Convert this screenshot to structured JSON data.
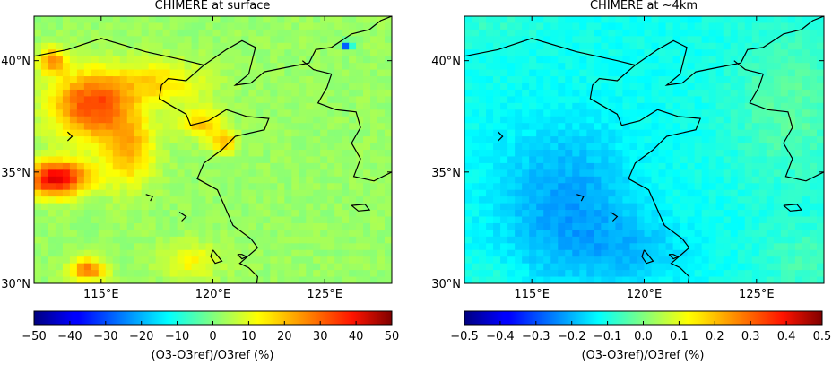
{
  "chart_data": [
    {
      "type": "heatmap",
      "title": "CHIMERE at surface",
      "x_ticks": [
        "115°E",
        "120°E",
        "125°E"
      ],
      "x_tick_values": [
        115,
        120,
        125
      ],
      "y_ticks": [
        "30°N",
        "35°N",
        "40°N"
      ],
      "y_tick_values": [
        30,
        35,
        40
      ],
      "xlim": [
        112,
        128
      ],
      "ylim": [
        30,
        42
      ],
      "colorbar": {
        "range": [
          -50,
          50
        ],
        "ticks": [
          "−50",
          "−40",
          "−30",
          "−20",
          "−10",
          "0",
          "10",
          "20",
          "30",
          "40",
          "50"
        ],
        "label": "(O3-O3ref)/O3ref (%)",
        "colormap": "jet"
      },
      "field": {
        "background": 0.05,
        "hotspots": [
          {
            "lon": 114.5,
            "lat": 38.0,
            "sx": 1.8,
            "sy": 1.5,
            "v": 0.55
          },
          {
            "lon": 113.0,
            "lat": 34.7,
            "sx": 1.4,
            "sy": 0.8,
            "v": 0.75
          },
          {
            "lon": 116.2,
            "lat": 36.0,
            "sx": 1.2,
            "sy": 1.6,
            "v": 0.35
          },
          {
            "lon": 117.5,
            "lat": 39.0,
            "sx": 2.2,
            "sy": 1.0,
            "v": 0.25
          },
          {
            "lon": 119.5,
            "lat": 37.2,
            "sx": 1.0,
            "sy": 0.7,
            "v": 0.3
          },
          {
            "lon": 120.5,
            "lat": 36.3,
            "sx": 0.6,
            "sy": 0.5,
            "v": 0.35
          },
          {
            "lon": 114.4,
            "lat": 30.6,
            "sx": 0.8,
            "sy": 0.5,
            "v": 0.5
          },
          {
            "lon": 119.0,
            "lat": 31.0,
            "sx": 1.3,
            "sy": 0.8,
            "v": 0.2
          },
          {
            "lon": 112.8,
            "lat": 40.0,
            "sx": 0.6,
            "sy": 0.6,
            "v": 0.4
          },
          {
            "lon": 126.0,
            "lat": 40.7,
            "sx": 0.2,
            "sy": 0.2,
            "v": -0.8
          }
        ]
      }
    },
    {
      "type": "heatmap",
      "title": "CHIMERE at ~4km",
      "x_ticks": [
        "115°E",
        "120°E",
        "125°E"
      ],
      "x_tick_values": [
        115,
        120,
        125
      ],
      "y_ticks": [
        "30°N",
        "35°N",
        "40°N"
      ],
      "y_tick_values": [
        30,
        35,
        40
      ],
      "xlim": [
        112,
        128
      ],
      "ylim": [
        30,
        42
      ],
      "colorbar": {
        "range": [
          -0.5,
          0.5
        ],
        "ticks": [
          "−0.5",
          "−0.4",
          "−0.3",
          "−0.2",
          "−0.1",
          "0.0",
          "0.1",
          "0.2",
          "0.3",
          "0.4",
          "0.5"
        ],
        "label": "(O3-O3ref)/O3ref (%)",
        "colormap": "jet"
      },
      "field": {
        "background": -0.22,
        "hotspots": [
          {
            "lon": 116.5,
            "lat": 33.5,
            "sx": 3.0,
            "sy": 3.5,
            "v": -0.22
          },
          {
            "lon": 119.5,
            "lat": 31.5,
            "sx": 2.5,
            "sy": 1.5,
            "v": -0.12
          },
          {
            "lon": 126.5,
            "lat": 38.0,
            "sx": 2.5,
            "sy": 3.5,
            "v": 0.15
          },
          {
            "lon": 127.0,
            "lat": 31.0,
            "sx": 2.0,
            "sy": 1.5,
            "v": 0.1
          },
          {
            "lon": 113.0,
            "lat": 41.5,
            "sx": 2.5,
            "sy": 1.0,
            "v": 0.06
          },
          {
            "lon": 113.0,
            "lat": 30.3,
            "sx": 1.5,
            "sy": 0.8,
            "v": 0.06
          }
        ]
      }
    }
  ],
  "colors": {
    "coastline": "#000000"
  }
}
